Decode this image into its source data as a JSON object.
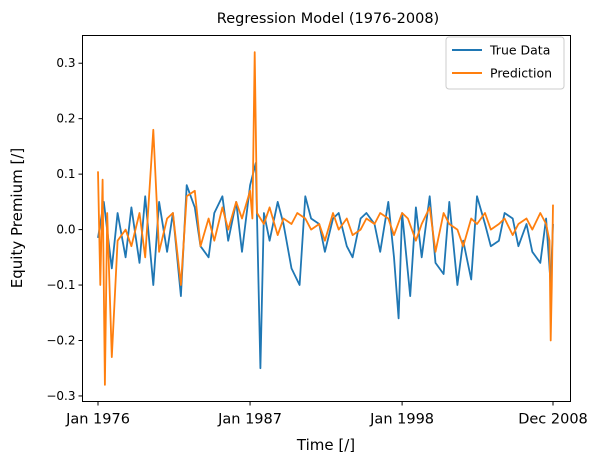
{
  "chart_data": {
    "type": "line",
    "title": "Regression Model (1976-2008)",
    "xlabel": "Time [/]",
    "ylabel": "Equity Premium [/]",
    "x_range": [
      "1976-01",
      "2008-12"
    ],
    "x_ticks": [
      {
        "label": "Jan 1976",
        "value": "1976-01"
      },
      {
        "label": "Jan 1987",
        "value": "1987-01"
      },
      {
        "label": "Jan 1998",
        "value": "1998-01"
      },
      {
        "label": "Dec 2008",
        "value": "2008-12"
      }
    ],
    "ylim": [
      -0.31,
      0.35
    ],
    "y_ticks": [
      -0.3,
      -0.2,
      -0.1,
      0.0,
      0.1,
      0.2,
      0.3
    ],
    "y_tick_labels": [
      "−0.3",
      "−0.2",
      "−0.1",
      "0.0",
      "0.1",
      "0.2",
      "0.3"
    ],
    "legend": {
      "position": "top-right"
    },
    "series": [
      {
        "name": "True Data",
        "color": "#1f77b4",
        "x": [
          "1976-01",
          "1976-06",
          "1977-01",
          "1977-06",
          "1978-01",
          "1978-06",
          "1979-01",
          "1979-06",
          "1980-01",
          "1980-06",
          "1981-01",
          "1981-06",
          "1982-01",
          "1982-06",
          "1983-01",
          "1983-06",
          "1984-01",
          "1984-06",
          "1985-01",
          "1985-06",
          "1986-01",
          "1986-06",
          "1987-01",
          "1987-06",
          "1987-10",
          "1988-01",
          "1988-06",
          "1989-01",
          "1989-06",
          "1990-01",
          "1990-08",
          "1991-01",
          "1991-06",
          "1992-01",
          "1992-06",
          "1993-01",
          "1993-06",
          "1994-01",
          "1994-06",
          "1995-01",
          "1995-06",
          "1996-01",
          "1996-06",
          "1997-01",
          "1997-06",
          "1997-10",
          "1998-01",
          "1998-08",
          "1999-01",
          "1999-06",
          "2000-01",
          "2000-06",
          "2001-01",
          "2001-06",
          "2002-01",
          "2002-06",
          "2003-01",
          "2003-06",
          "2004-01",
          "2004-06",
          "2005-01",
          "2005-06",
          "2006-01",
          "2006-06",
          "2007-01",
          "2007-06",
          "2008-01",
          "2008-06",
          "2008-10",
          "2008-12"
        ],
        "values": [
          -0.015,
          0.05,
          -0.07,
          0.03,
          -0.05,
          0.04,
          -0.06,
          0.06,
          -0.1,
          0.05,
          -0.04,
          0.03,
          -0.12,
          0.08,
          0.04,
          -0.03,
          -0.05,
          0.03,
          0.06,
          -0.02,
          0.05,
          -0.04,
          0.08,
          0.12,
          -0.25,
          0.03,
          -0.02,
          0.05,
          0.01,
          -0.07,
          -0.1,
          0.06,
          0.02,
          0.01,
          -0.04,
          0.02,
          0.03,
          -0.03,
          -0.05,
          0.02,
          0.03,
          0.01,
          -0.04,
          0.05,
          -0.05,
          -0.16,
          0.03,
          -0.12,
          0.04,
          -0.05,
          0.06,
          -0.06,
          -0.08,
          0.05,
          -0.1,
          -0.02,
          -0.09,
          0.06,
          0.01,
          -0.03,
          -0.02,
          0.03,
          0.02,
          -0.03,
          0.01,
          -0.04,
          -0.06,
          0.02,
          -0.1,
          0.01
        ]
      },
      {
        "name": "Prediction",
        "color": "#ff7f0e",
        "x": [
          "1976-01",
          "1976-03",
          "1976-05",
          "1976-07",
          "1976-09",
          "1977-01",
          "1977-06",
          "1978-01",
          "1978-06",
          "1979-01",
          "1979-06",
          "1980-01",
          "1980-06",
          "1981-01",
          "1981-06",
          "1982-01",
          "1982-06",
          "1983-01",
          "1983-06",
          "1984-01",
          "1984-06",
          "1985-01",
          "1985-06",
          "1986-01",
          "1986-06",
          "1987-01",
          "1987-03",
          "1987-05",
          "1987-07",
          "1988-01",
          "1988-06",
          "1989-01",
          "1989-06",
          "1990-01",
          "1990-06",
          "1991-01",
          "1991-06",
          "1992-01",
          "1992-06",
          "1993-01",
          "1993-06",
          "1994-01",
          "1994-06",
          "1995-01",
          "1995-06",
          "1996-01",
          "1996-06",
          "1997-01",
          "1997-06",
          "1998-01",
          "1998-06",
          "1999-01",
          "1999-06",
          "2000-01",
          "2000-06",
          "2001-01",
          "2001-06",
          "2002-01",
          "2002-06",
          "2003-01",
          "2003-06",
          "2004-01",
          "2004-06",
          "2005-01",
          "2005-06",
          "2006-01",
          "2006-06",
          "2007-01",
          "2007-06",
          "2008-01",
          "2008-06",
          "2008-09",
          "2008-10",
          "2008-11",
          "2008-12"
        ],
        "values": [
          0.105,
          -0.1,
          0.09,
          -0.28,
          0.03,
          -0.23,
          -0.02,
          0.0,
          -0.03,
          0.03,
          -0.05,
          0.18,
          -0.04,
          0.02,
          0.03,
          -0.1,
          0.06,
          0.07,
          -0.03,
          0.02,
          -0.02,
          0.04,
          0.0,
          0.05,
          0.02,
          0.07,
          0.02,
          0.32,
          0.03,
          0.01,
          0.04,
          -0.01,
          0.02,
          0.01,
          0.03,
          0.02,
          0.0,
          0.01,
          -0.02,
          0.03,
          0.0,
          0.02,
          -0.01,
          0.0,
          0.02,
          0.01,
          0.03,
          0.02,
          -0.01,
          0.03,
          0.02,
          -0.02,
          0.01,
          0.04,
          -0.04,
          0.03,
          0.01,
          0.0,
          -0.03,
          0.02,
          0.01,
          0.03,
          0.0,
          0.01,
          0.02,
          -0.01,
          0.01,
          0.02,
          0.0,
          0.03,
          0.01,
          -0.02,
          -0.2,
          -0.1,
          0.045
        ]
      }
    ]
  }
}
